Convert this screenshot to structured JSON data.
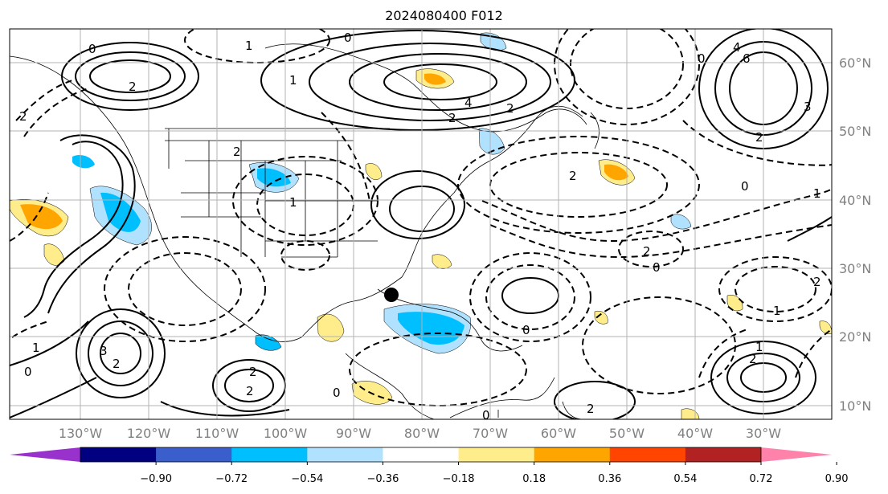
{
  "title": "2024080400 F012",
  "lon_labels": [
    "130°W",
    "120°W",
    "110°W",
    "100°W",
    "90°W",
    "80°W",
    "70°W",
    "60°W",
    "50°W",
    "40°W",
    "30°W"
  ],
  "lat_labels": [
    "60°N",
    "50°N",
    "40°N",
    "30°N",
    "20°N",
    "10°N"
  ],
  "colorbar": {
    "colors": [
      "#9932cc",
      "#000080",
      "#3a5fcd",
      "#00bfff",
      "#b0e2ff",
      "#ffffff",
      "#ffec8b",
      "#ffa500",
      "#ff4500",
      "#b22222",
      "#ff82ab"
    ],
    "labels": [
      "−0.90",
      "−0.72",
      "−0.54",
      "−0.36",
      "−0.18",
      "0.18",
      "0.36",
      "0.54",
      "0.72",
      "0.90"
    ]
  },
  "contour_labels": [
    "1",
    "2",
    "0",
    "2",
    "1",
    "0",
    "2",
    "4",
    "2",
    "0",
    "4",
    "6",
    "2",
    "3",
    "0",
    "1",
    "2",
    "0",
    "2",
    "2",
    "1",
    "3",
    "2",
    "0",
    "2",
    "2",
    "1",
    "0",
    "2",
    "1",
    "2",
    "0",
    "2",
    "0",
    "1"
  ],
  "marker": {
    "label": "black-dot"
  }
}
